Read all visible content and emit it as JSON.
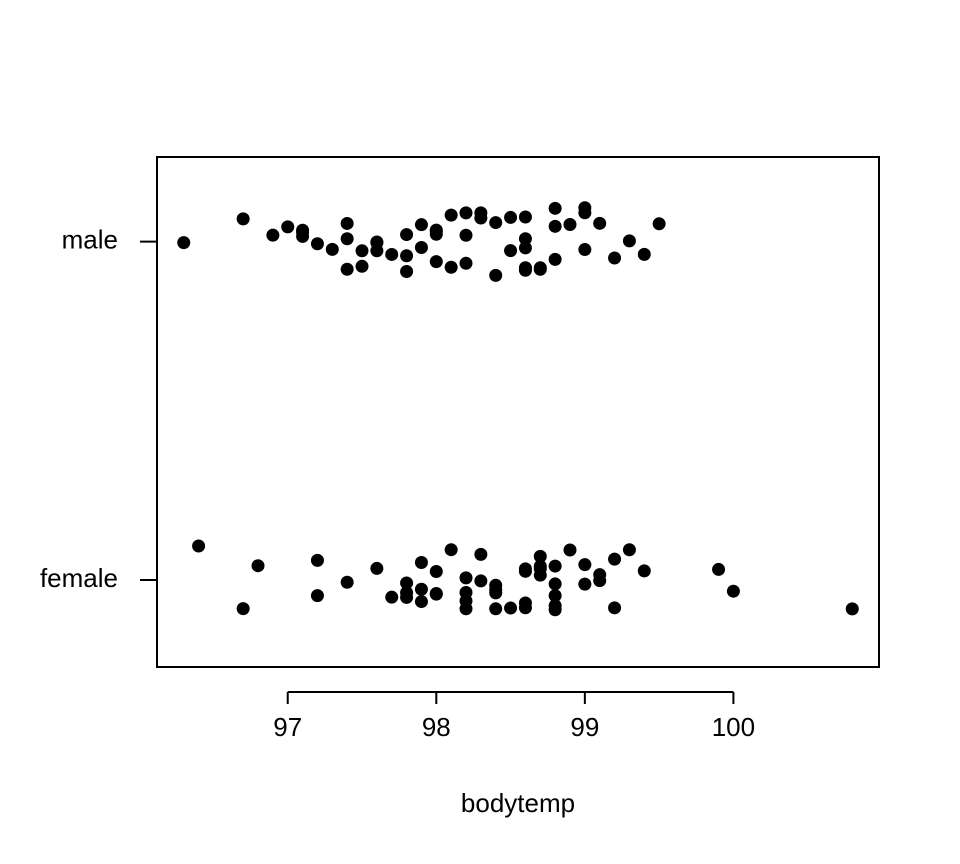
{
  "chart_data": {
    "type": "strip",
    "xlabel": "bodytemp",
    "color": "#000000",
    "xlim": [
      96.12,
      100.98
    ],
    "xticks": [
      97,
      98,
      99,
      100
    ],
    "series": [
      {
        "name": "female",
        "values": [
          96.4,
          96.7,
          96.8,
          97.2,
          97.2,
          97.4,
          97.6,
          97.7,
          97.8,
          97.8,
          97.8,
          97.9,
          97.9,
          97.9,
          98.0,
          98.0,
          98.0,
          98.1,
          98.2,
          98.2,
          98.2,
          98.2,
          98.3,
          98.3,
          98.4,
          98.4,
          98.4,
          98.4,
          98.5,
          98.6,
          98.6,
          98.6,
          98.6,
          98.7,
          98.7,
          98.7,
          98.7,
          98.8,
          98.8,
          98.8,
          98.8,
          98.8,
          98.9,
          99.0,
          99.0,
          99.1,
          99.1,
          99.2,
          99.2,
          99.3,
          99.4,
          99.9,
          100.0,
          100.8
        ]
      },
      {
        "name": "male",
        "values": [
          96.3,
          96.7,
          96.9,
          97.0,
          97.1,
          97.1,
          97.1,
          97.2,
          97.3,
          97.4,
          97.4,
          97.4,
          97.5,
          97.5,
          97.6,
          97.6,
          97.6,
          97.7,
          97.8,
          97.8,
          97.8,
          97.9,
          97.9,
          98.0,
          98.0,
          98.0,
          98.0,
          98.1,
          98.1,
          98.2,
          98.2,
          98.2,
          98.3,
          98.3,
          98.4,
          98.4,
          98.5,
          98.5,
          98.6,
          98.6,
          98.6,
          98.6,
          98.6,
          98.6,
          98.7,
          98.7,
          98.8,
          98.8,
          98.8,
          98.9,
          99.0,
          99.0,
          99.0,
          99.1,
          99.2,
          99.3,
          99.4,
          99.5
        ]
      }
    ]
  }
}
